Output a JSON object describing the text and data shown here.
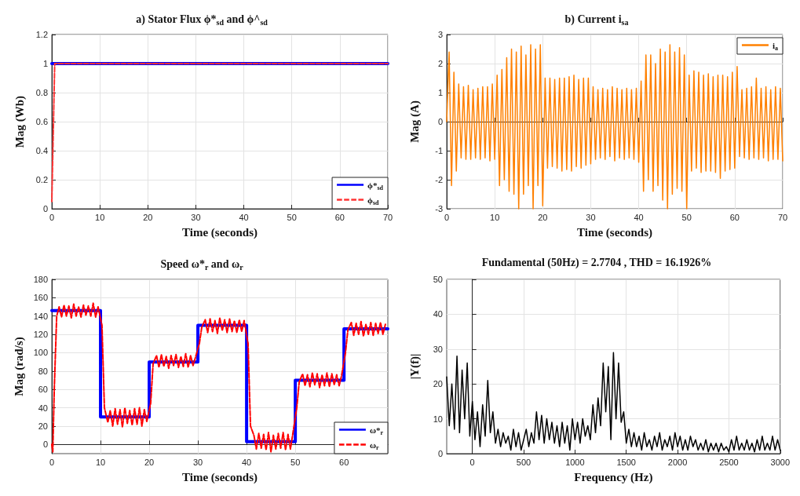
{
  "chart_data": [
    {
      "type": "line",
      "title": "a) Stator Flux ϕ*$_{sd}$ and ϕ^$_{sd}$",
      "xlabel": "Time (seconds)",
      "ylabel": "Mag (Wb)",
      "xlim": [
        0,
        70
      ],
      "xticks": [
        0,
        10,
        20,
        30,
        40,
        50,
        60,
        70
      ],
      "ylim": [
        0,
        1.2
      ],
      "yticks": [
        0,
        0.2,
        0.4,
        0.6,
        0.8,
        1,
        1.2
      ],
      "grid": true,
      "legend": "bottom right",
      "marker": "none",
      "series": [
        {
          "name": "ϕ*$_{sd}$",
          "color": "#0000ff",
          "line_style": "solid",
          "x": [
            0,
            70
          ],
          "values": [
            1,
            1
          ]
        },
        {
          "name": "ϕ$_{sd}$",
          "color": "#ff3333",
          "line_style": "dashed",
          "x": [
            0,
            0.6,
            70
          ],
          "values": [
            0.05,
            1,
            1
          ]
        }
      ]
    },
    {
      "type": "line",
      "title": "b) Current i$_{sa}$",
      "xlabel": "Time (seconds)",
      "ylabel": "Mag (A)",
      "xlim": [
        0,
        70
      ],
      "xticks": [
        0,
        10,
        20,
        30,
        40,
        50,
        60,
        70
      ],
      "ylim": [
        -3,
        3
      ],
      "yticks": [
        -3,
        -2,
        -1,
        0,
        1,
        2,
        3
      ],
      "grid": true,
      "legend": "top right",
      "marker": "none",
      "line_style": "solid",
      "series": [
        {
          "name": "i$_{a}$",
          "color": "#ff8000",
          "x": [
            0,
            0.5,
            1,
            1.5,
            2,
            2.5,
            3,
            3.5,
            4,
            4.5,
            5,
            5.5,
            6,
            6.5,
            7,
            7.5,
            8,
            8.5,
            9,
            9.5,
            10,
            10.5,
            11,
            11.5,
            12,
            12.5,
            13,
            13.5,
            14,
            14.5,
            15,
            15.5,
            16,
            16.5,
            17,
            17.5,
            18,
            18.5,
            19,
            19.5,
            20,
            20.5,
            21,
            21.5,
            22,
            22.5,
            23,
            23.5,
            24,
            24.5,
            25,
            25.5,
            26,
            26.5,
            27,
            27.5,
            28,
            28.5,
            29,
            29.5,
            30,
            30.5,
            31,
            31.5,
            32,
            32.5,
            33,
            33.5,
            34,
            34.5,
            35,
            35.5,
            36,
            36.5,
            37,
            37.5,
            38,
            38.5,
            39,
            39.5,
            40,
            40.5,
            41,
            41.5,
            42,
            42.5,
            43,
            43.5,
            44,
            44.5,
            45,
            45.5,
            46,
            46.5,
            47,
            47.5,
            48,
            48.5,
            49,
            49.5,
            50,
            50.5,
            51,
            51.5,
            52,
            52.5,
            53,
            53.5,
            54,
            54.5,
            55,
            55.5,
            56,
            56.5,
            57,
            57.5,
            58,
            58.5,
            59,
            59.5,
            60,
            60.5,
            61,
            61.5,
            62,
            62.5,
            63,
            63.5,
            64,
            64.5,
            65,
            65.5,
            66,
            66.5,
            67,
            67.5,
            68,
            68.5,
            69,
            69.5,
            70
          ],
          "values": [
            0,
            2.4,
            -2.2,
            1.7,
            -1.7,
            1.3,
            -1.25,
            1.2,
            -1.3,
            1.25,
            -1.3,
            1.1,
            -1.25,
            1.15,
            -1.3,
            1.2,
            -1.25,
            1.2,
            -1.35,
            1.3,
            -1.3,
            1.6,
            -2.2,
            1.8,
            -2,
            2.2,
            -2.4,
            2.5,
            -2.5,
            2.4,
            -3,
            2.6,
            -2.5,
            2.3,
            -2.2,
            2.65,
            -3,
            2.5,
            -2.2,
            2.65,
            -2.9,
            1.5,
            -1.6,
            1.5,
            -1.55,
            1.45,
            -1.6,
            1.5,
            -1.7,
            1.5,
            -1.65,
            1.55,
            -1.7,
            1.6,
            -1.55,
            1.45,
            -1.6,
            1.5,
            -1.5,
            1.5,
            -1.45,
            1.2,
            -1.3,
            1.1,
            -1.25,
            1.15,
            -1.3,
            1.1,
            -1.2,
            1.2,
            -1.35,
            1.15,
            -1.25,
            1.1,
            -1.3,
            1.15,
            -1.25,
            1.1,
            -1.3,
            1.15,
            -1.4,
            1.4,
            -2.4,
            2.3,
            -2,
            2.3,
            -2.4,
            2,
            -2.2,
            2.5,
            -2.7,
            2.4,
            -3,
            2.65,
            -2.5,
            2.4,
            -2.3,
            2.55,
            -2.4,
            2.3,
            -3,
            1.6,
            -1.7,
            1.75,
            -1.6,
            1.7,
            -1.75,
            1.6,
            -1.7,
            1.65,
            -1.7,
            1.55,
            -1.75,
            1.6,
            -1.95,
            1.6,
            -1.7,
            1.55,
            -1.65,
            1.7,
            -1.6,
            1.9,
            -1.2,
            1.1,
            -1.25,
            1.15,
            -1.3,
            1.2,
            -1.25,
            1.5,
            -1.3,
            1.15,
            -1.25,
            1.2,
            -1.35,
            1.1,
            -1.3,
            1.2,
            -1.3,
            1.15,
            -1.35
          ]
        }
      ]
    },
    {
      "type": "line",
      "title": "Speed ω*$_{r}$ and ω$_{r}$",
      "xlabel": "Time (seconds)",
      "ylabel": "Mag (rad/s)",
      "xlim": [
        0,
        69
      ],
      "xticks": [
        0,
        10,
        20,
        30,
        40,
        50,
        60
      ],
      "ylim": [
        -10,
        180
      ],
      "yticks": [
        0,
        20,
        40,
        60,
        80,
        100,
        120,
        140,
        160,
        180
      ],
      "grid": true,
      "legend": "bottom right",
      "marker": "none",
      "series": [
        {
          "name": "ω*$_{r}$",
          "type": "step",
          "color": "#0000ff",
          "line_style": "solid",
          "x": [
            0,
            10,
            20,
            30,
            40,
            50,
            60,
            69
          ],
          "values": [
            146,
            30,
            90,
            130,
            3,
            70,
            126,
            126
          ]
        },
        {
          "name": "ω$_{r}$",
          "color": "#ff0000",
          "line_style": "dashed",
          "x": [
            0,
            0.2,
            0.5,
            1,
            1.5,
            2,
            2.5,
            3,
            3.5,
            4,
            4.5,
            5,
            5.5,
            6,
            6.5,
            7,
            7.5,
            8,
            8.5,
            9,
            9.5,
            10.3,
            10.8,
            11.5,
            12,
            12.5,
            13,
            13.5,
            14,
            14.5,
            15,
            15.5,
            16,
            16.5,
            17,
            17.5,
            18,
            18.5,
            19,
            19.5,
            20.3,
            20.8,
            21.5,
            22,
            22.5,
            23,
            23.5,
            24,
            24.5,
            25,
            25.5,
            26,
            26.5,
            27,
            27.5,
            28,
            28.5,
            29,
            29.5,
            30.3,
            30.8,
            31.5,
            32,
            32.5,
            33,
            33.5,
            34,
            34.5,
            35,
            35.5,
            36,
            36.5,
            37,
            37.5,
            38,
            38.5,
            39,
            39.5,
            40.3,
            40.8,
            41.5,
            42,
            42.5,
            43,
            43.5,
            44,
            44.5,
            45,
            45.5,
            46,
            46.5,
            47,
            47.5,
            48,
            48.5,
            49,
            49.5,
            50.3,
            50.8,
            51.5,
            52,
            52.5,
            53,
            53.5,
            54,
            54.5,
            55,
            55.5,
            56,
            56.5,
            57,
            57.5,
            58,
            58.5,
            59,
            59.5,
            60.3,
            60.8,
            61.5,
            62,
            62.5,
            63,
            63.5,
            64,
            64.5,
            65,
            65.5,
            66,
            66.5,
            67,
            67.5,
            68,
            68.5
          ],
          "values": [
            0,
            -8,
            60,
            140,
            150,
            139,
            152,
            140,
            151,
            138,
            153,
            140,
            150,
            139,
            152,
            141,
            151,
            140,
            154,
            139,
            150,
            130,
            40,
            24,
            37,
            20,
            39,
            22,
            38,
            19,
            40,
            23,
            37,
            21,
            39,
            22,
            40,
            20,
            38,
            25,
            45,
            88,
            97,
            84,
            98,
            85,
            96,
            83,
            97,
            86,
            98,
            84,
            96,
            85,
            99,
            84,
            97,
            86,
            95,
            110,
            128,
            136,
            122,
            137,
            123,
            135,
            121,
            138,
            124,
            136,
            122,
            137,
            123,
            135,
            122,
            136,
            123,
            135,
            110,
            20,
            10,
            -5,
            12,
            -4,
            11,
            -6,
            13,
            -8,
            10,
            -5,
            12,
            -4,
            13,
            -6,
            11,
            -5,
            12,
            40,
            68,
            77,
            64,
            76,
            63,
            78,
            65,
            77,
            62,
            76,
            64,
            78,
            63,
            77,
            65,
            76,
            64,
            75,
            100,
            125,
            133,
            119,
            132,
            120,
            134,
            118,
            131,
            120,
            133,
            119,
            132,
            121,
            133,
            120,
            131
          ]
        }
      ]
    },
    {
      "type": "line",
      "title": "Fundamental (50Hz) = 2.7704 , THD = 16.1926%",
      "xlabel": "Frequency (Hz)",
      "ylabel": "|Y(f)|",
      "xlim": [
        -250,
        3000
      ],
      "xticks": [
        0,
        500,
        1000,
        1500,
        2000,
        2500,
        3000
      ],
      "ylim": [
        0,
        50
      ],
      "yticks": [
        0,
        10,
        20,
        30,
        40,
        50
      ],
      "grid": true,
      "marker": "none",
      "line_style": "solid",
      "series": [
        {
          "color": "#000000",
          "x": [
            -250,
            -225,
            -200,
            -175,
            -150,
            -125,
            -100,
            -75,
            -50,
            -25,
            0,
            25,
            50,
            75,
            100,
            125,
            150,
            175,
            200,
            225,
            250,
            275,
            300,
            325,
            350,
            375,
            400,
            425,
            450,
            475,
            500,
            525,
            550,
            575,
            600,
            625,
            650,
            675,
            700,
            725,
            750,
            775,
            800,
            825,
            850,
            875,
            900,
            925,
            950,
            975,
            1000,
            1025,
            1050,
            1075,
            1100,
            1125,
            1150,
            1175,
            1200,
            1225,
            1250,
            1275,
            1300,
            1325,
            1350,
            1375,
            1400,
            1425,
            1450,
            1475,
            1500,
            1525,
            1550,
            1575,
            1600,
            1625,
            1650,
            1675,
            1700,
            1725,
            1750,
            1775,
            1800,
            1825,
            1850,
            1875,
            1900,
            1925,
            1950,
            1975,
            2000,
            2025,
            2050,
            2075,
            2100,
            2125,
            2150,
            2175,
            2200,
            2225,
            2250,
            2275,
            2300,
            2325,
            2350,
            2375,
            2400,
            2425,
            2450,
            2475,
            2500,
            2525,
            2550,
            2575,
            2600,
            2625,
            2650,
            2675,
            2700,
            2725,
            2750,
            2775,
            2800,
            2825,
            2850,
            2875,
            2900,
            2925,
            2950,
            2975,
            3000
          ],
          "values": [
            22,
            8,
            20,
            7,
            28,
            6,
            24,
            10,
            26,
            5,
            15,
            4,
            12,
            2,
            14,
            5,
            21,
            6,
            12,
            3,
            7,
            2,
            6,
            3,
            5,
            1,
            7,
            2,
            6,
            1,
            4,
            7,
            2,
            6,
            3,
            12,
            4,
            11,
            3,
            10,
            4,
            9,
            3,
            8,
            2,
            9,
            3,
            8,
            1,
            10,
            4,
            9,
            3,
            10,
            5,
            8,
            4,
            14,
            6,
            16,
            8,
            26,
            12,
            25,
            4,
            29,
            10,
            26,
            9,
            12,
            3,
            7,
            2,
            6,
            2,
            5,
            1,
            6,
            2,
            4,
            1,
            5,
            2,
            6,
            1,
            4,
            2,
            5,
            1,
            6,
            2,
            5,
            1,
            4,
            1,
            5,
            2,
            4,
            1,
            3,
            1,
            4,
            0.5,
            3,
            1,
            3,
            0.5,
            3,
            1,
            2,
            0.5,
            4,
            1,
            5,
            1,
            3,
            1,
            4,
            1,
            3,
            0.5,
            4,
            1,
            5,
            1,
            3,
            1,
            5,
            1,
            4,
            1
          ]
        }
      ]
    }
  ]
}
